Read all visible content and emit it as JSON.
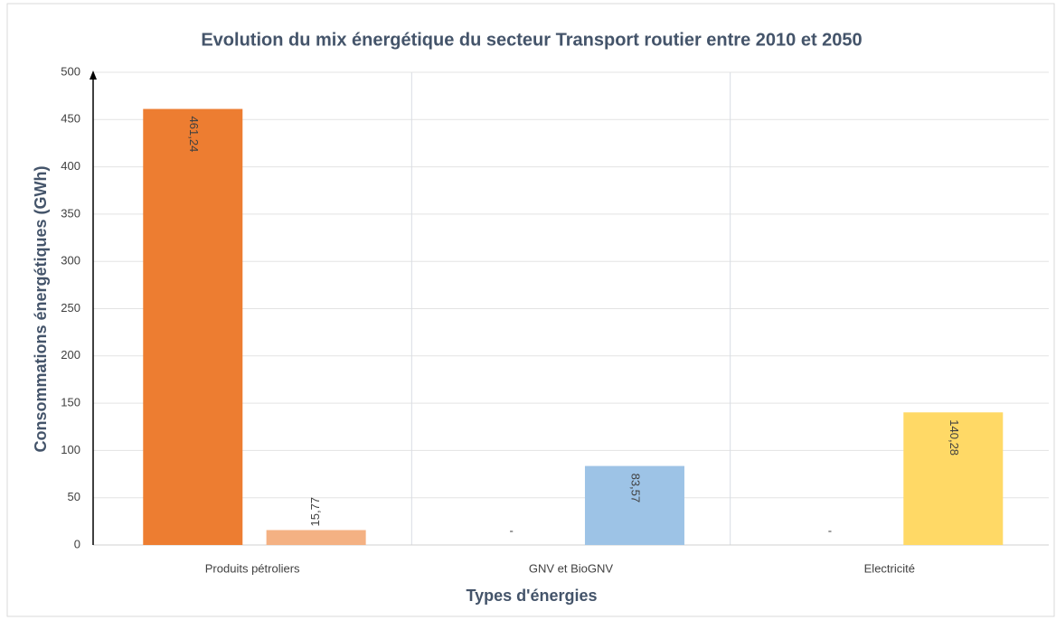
{
  "chart_data": {
    "type": "bar",
    "title": "Evolution du mix énergétique du secteur Transport routier entre 2010 et 2050",
    "x_label": "Types d'énergies",
    "y_label": "Consommations énergétiques (GWh)",
    "categories": [
      "Produits pétroliers",
      "GNV et BioGNV",
      "Electricité"
    ],
    "series": [
      {
        "colors": [
          "#ed7d31",
          "#ed7d31",
          "#ed7d31"
        ],
        "values": [
          461.24,
          0,
          0
        ],
        "value_labels": [
          "461,24",
          "-",
          "-"
        ]
      },
      {
        "colors": [
          "#f4b183",
          "#9dc3e6",
          "#ffd966"
        ],
        "values": [
          15.77,
          83.57,
          140.28
        ],
        "value_labels": [
          "15,77",
          "83,57",
          "140,28"
        ]
      }
    ],
    "ylim": [
      0,
      500
    ],
    "yticks": [
      0,
      50,
      100,
      150,
      200,
      250,
      300,
      350,
      400,
      450,
      500
    ],
    "grid": true
  }
}
